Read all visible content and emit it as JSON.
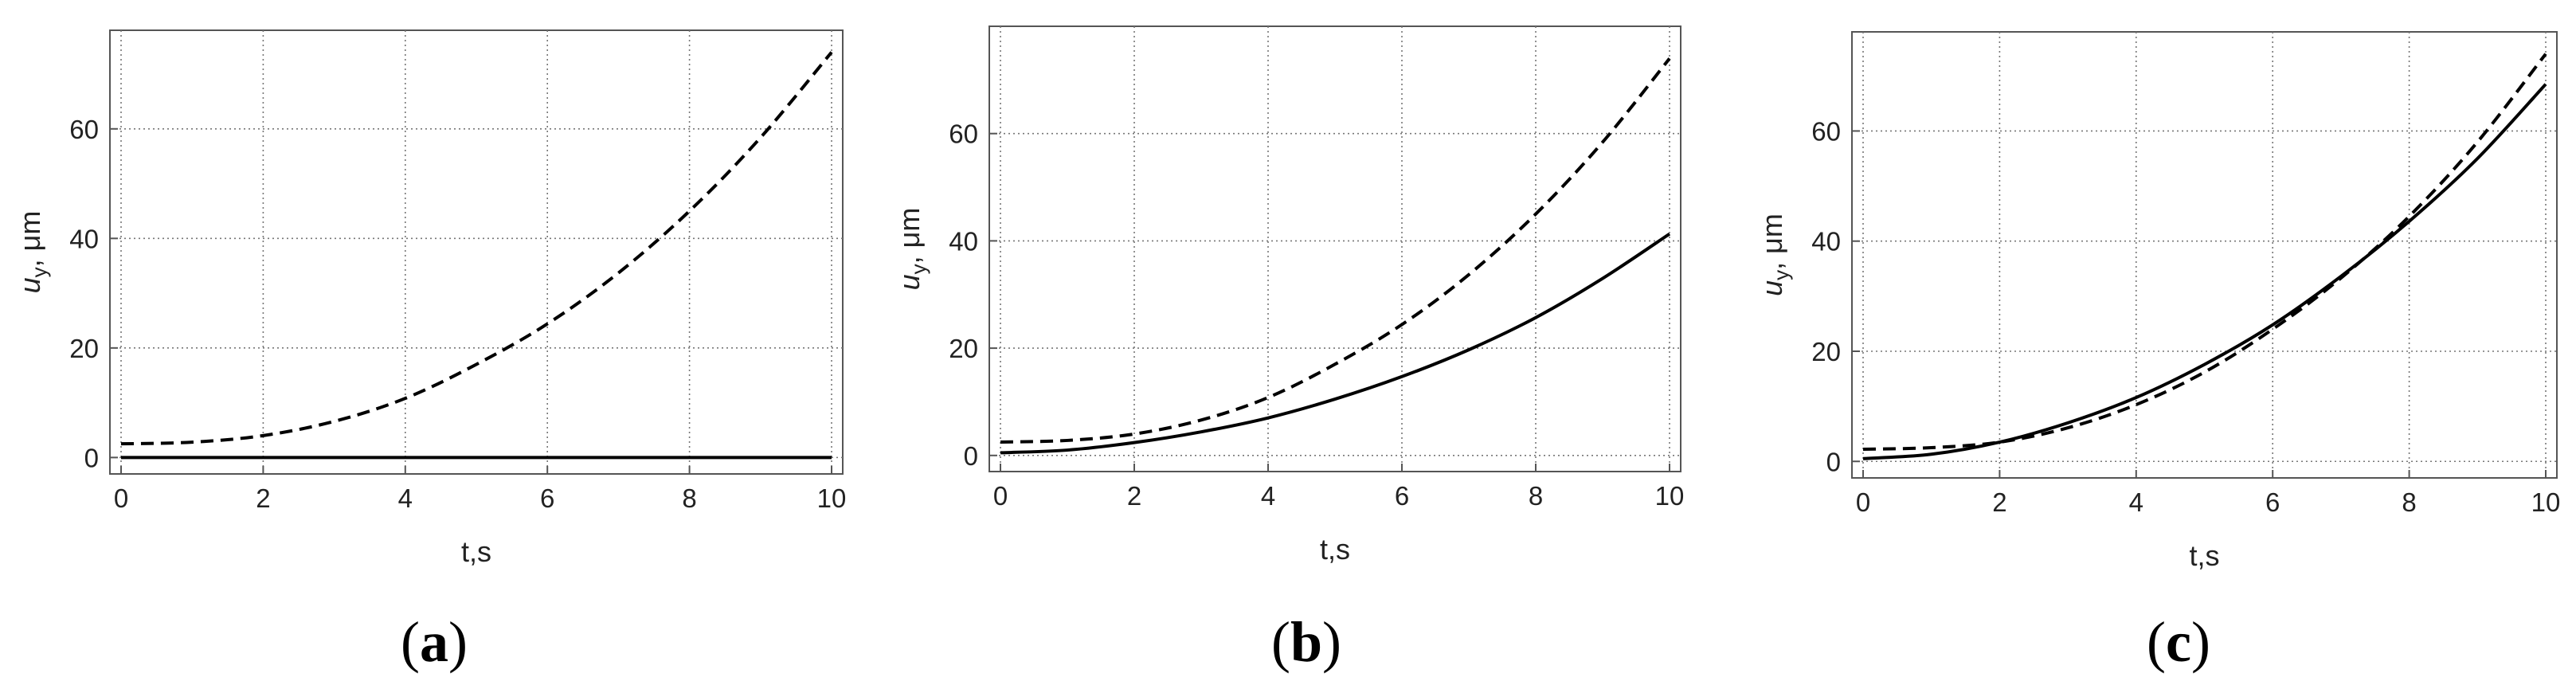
{
  "chart_data": [
    {
      "type": "line",
      "panel_label": "a",
      "xlabel": "t,s",
      "ylabel": "u_y, μm",
      "xlim": [
        0,
        10
      ],
      "ylim": [
        -3,
        78
      ],
      "xticks": [
        0,
        2,
        4,
        6,
        8,
        10
      ],
      "yticks": [
        0,
        20,
        40,
        60
      ],
      "grid": true,
      "series": [
        {
          "style": "dashed",
          "x": [
            0,
            1,
            2,
            3,
            4,
            5,
            6,
            7,
            8,
            9,
            10
          ],
          "y": [
            2.5,
            2.8,
            4.0,
            6.6,
            10.8,
            17.0,
            24.4,
            33.7,
            45.0,
            58.4,
            74.0
          ]
        },
        {
          "style": "solid",
          "x": [
            0,
            1,
            2,
            3,
            4,
            5,
            6,
            7,
            8,
            9,
            10
          ],
          "y": [
            0,
            0,
            0,
            0,
            0,
            0,
            0,
            0,
            0,
            0,
            0
          ]
        }
      ]
    },
    {
      "type": "line",
      "panel_label": "b",
      "xlabel": "t,s",
      "ylabel": "u_y, μm",
      "xlim": [
        0,
        10
      ],
      "ylim": [
        -3,
        80
      ],
      "xticks": [
        0,
        2,
        4,
        6,
        8,
        10
      ],
      "yticks": [
        0,
        20,
        40,
        60
      ],
      "grid": true,
      "series": [
        {
          "style": "dashed",
          "x": [
            0,
            1,
            2,
            3,
            4,
            5,
            6,
            7,
            8,
            9,
            10
          ],
          "y": [
            2.5,
            2.8,
            4.0,
            6.6,
            10.8,
            17.0,
            24.4,
            33.7,
            45.0,
            58.4,
            74.0
          ]
        },
        {
          "style": "solid",
          "x": [
            0,
            1,
            2,
            3,
            4,
            5,
            6,
            7,
            8,
            9,
            10
          ],
          "y": [
            0.5,
            1.0,
            2.4,
            4.4,
            7.0,
            10.5,
            14.7,
            19.7,
            25.7,
            33.0,
            41.3
          ]
        }
      ]
    },
    {
      "type": "line",
      "panel_label": "c",
      "xlabel": "t,s",
      "ylabel": "u_y, μm",
      "xlim": [
        0,
        10
      ],
      "ylim": [
        -3,
        78
      ],
      "xticks": [
        0,
        2,
        4,
        6,
        8,
        10
      ],
      "yticks": [
        0,
        20,
        40,
        60
      ],
      "grid": true,
      "series": [
        {
          "style": "dashed",
          "x": [
            0,
            1,
            2,
            3,
            4,
            5,
            6,
            7,
            8,
            9,
            10
          ],
          "y": [
            2.2,
            2.5,
            3.5,
            6.1,
            10.3,
            16.2,
            24.0,
            33.3,
            44.5,
            58.0,
            74.0
          ]
        },
        {
          "style": "solid",
          "x": [
            0,
            1,
            2,
            3,
            4,
            5,
            6,
            7,
            8,
            9,
            10
          ],
          "y": [
            0.5,
            1.3,
            3.5,
            7.0,
            11.6,
            17.6,
            24.8,
            33.6,
            43.6,
            55.0,
            68.5
          ]
        }
      ]
    }
  ]
}
